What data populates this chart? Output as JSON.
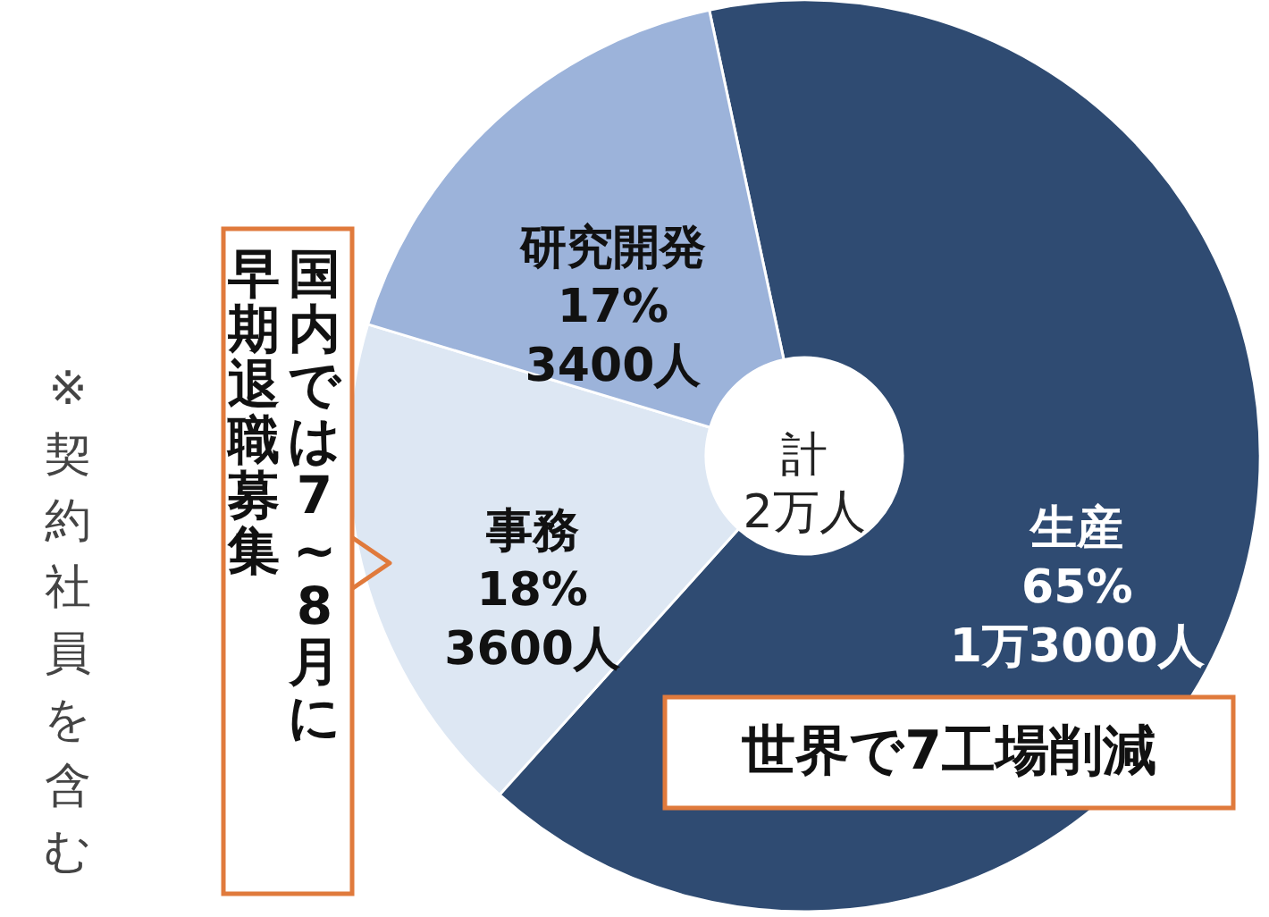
{
  "chart_data": {
    "type": "donut",
    "categories": [
      "生産",
      "事務",
      "研究開発"
    ],
    "values": [
      65,
      18,
      17
    ],
    "colors": [
      "#2f4b72",
      "#dde7f3",
      "#9cb3da"
    ],
    "value_labels": [
      "65%\n1万3000人",
      "18%\n3600人",
      "17%\n3400人"
    ],
    "annotations": [
      "計\n2万人",
      "国内では7~8月に",
      "早期退職募集",
      "世界で7工場削減",
      "※契約社員を含む"
    ]
  }
}
